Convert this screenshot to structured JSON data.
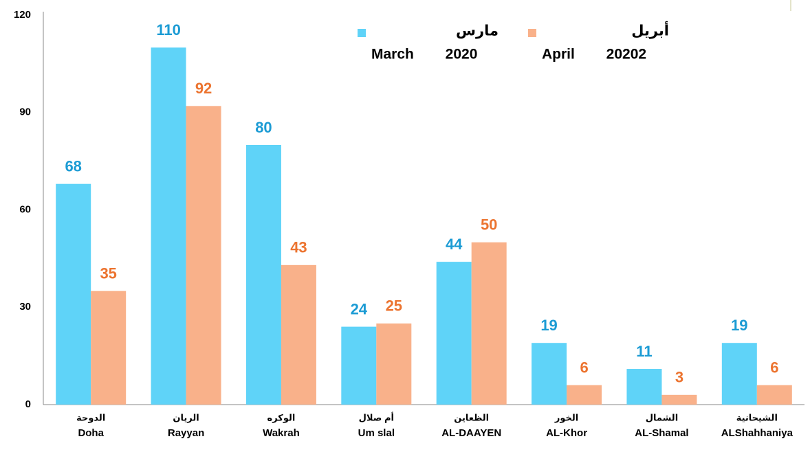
{
  "chart_data": {
    "type": "bar",
    "categories": [
      "Doha",
      "Rayyan",
      "Wakrah",
      "Um slal",
      "AL-DAAYEN",
      "AL-Khor",
      "AL-Shamal",
      "ALShahhaniya"
    ],
    "categories_ar": [
      "الدوحة",
      "الريان",
      "الوكره",
      "أم صلال",
      "الظعاين",
      "الخور",
      "الشمال",
      "الشيحانية"
    ],
    "series": [
      {
        "name": "March 2020",
        "name_ar": "مارس",
        "color": "#5fd3f8",
        "label_color": "#1b9bd4",
        "values": [
          68,
          110,
          80,
          24,
          44,
          19,
          11,
          19
        ]
      },
      {
        "name": "April 20202",
        "name_ar": "أبريل",
        "color": "#f9b18a",
        "label_color": "#ec7430",
        "values": [
          35,
          92,
          43,
          25,
          50,
          6,
          3,
          6
        ]
      }
    ],
    "ylim": [
      0,
      120
    ],
    "yticks": [
      0,
      30,
      60,
      90,
      120
    ],
    "grid": false
  }
}
